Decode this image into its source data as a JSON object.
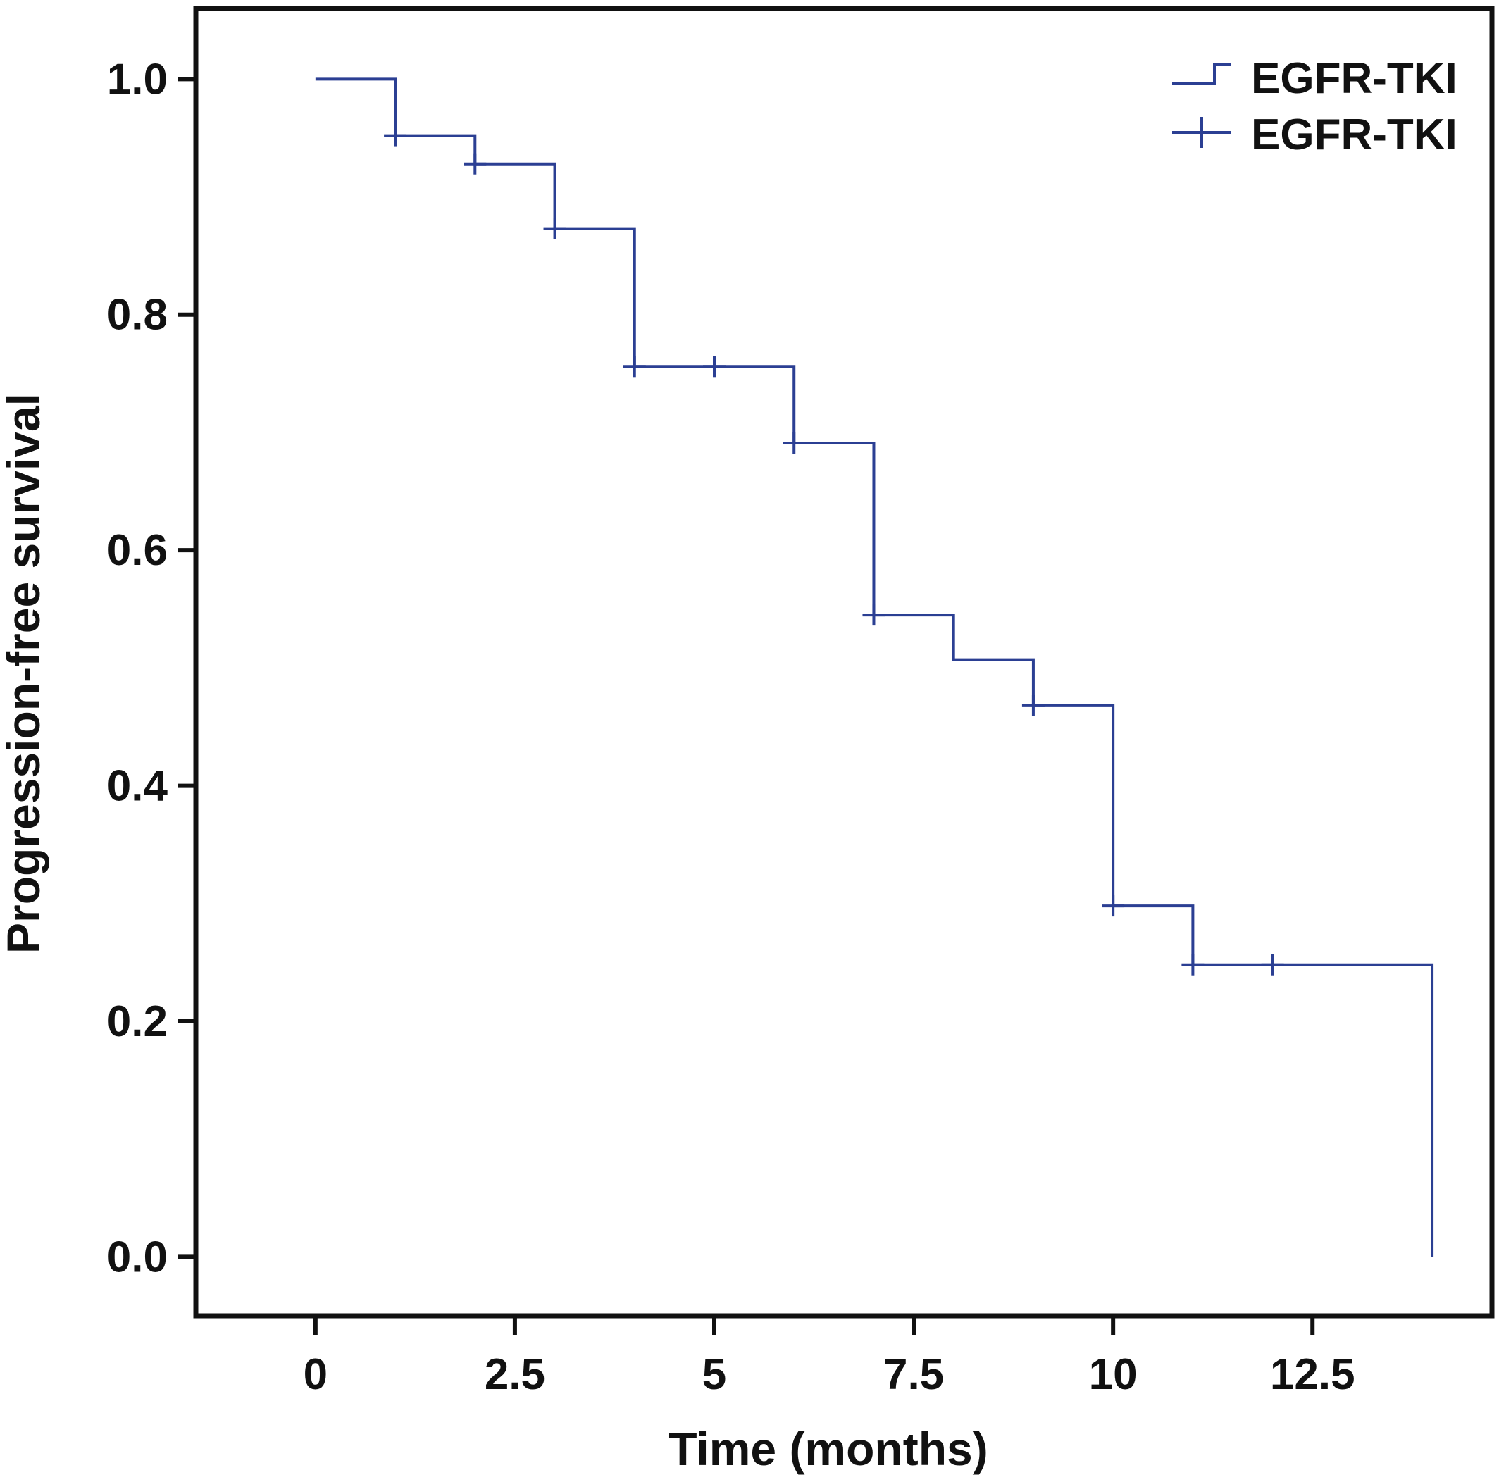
{
  "chart_data": {
    "type": "line",
    "xlabel": "Time (months)",
    "ylabel": "Progression-free survival",
    "xlim": [
      -1.5,
      14.75
    ],
    "ylim": [
      -0.05,
      1.06
    ],
    "x_ticks": [
      0,
      2.5,
      5,
      7.5,
      10,
      12.5
    ],
    "x_tick_labels": [
      "0",
      "2.5",
      "5",
      "7.5",
      "10",
      "12.5"
    ],
    "y_ticks": [
      0.0,
      0.2,
      0.4,
      0.6,
      0.8,
      1.0
    ],
    "y_tick_labels": [
      "0.0",
      "0.2",
      "0.4",
      "0.6",
      "0.8",
      "1.0"
    ],
    "grid": false,
    "legend_position": "top-right",
    "legend": [
      {
        "label": "EGFR-TKI",
        "symbol": "step-line"
      },
      {
        "label": "EGFR-TKI",
        "symbol": "censor-cross"
      }
    ],
    "series": [
      {
        "name": "EGFR-TKI",
        "color": "#2b3f93",
        "steps": [
          {
            "x": 0,
            "y": 1.0
          },
          {
            "x": 1,
            "y": 0.952
          },
          {
            "x": 2,
            "y": 0.928
          },
          {
            "x": 3,
            "y": 0.873
          },
          {
            "x": 4,
            "y": 0.756
          },
          {
            "x": 6,
            "y": 0.691
          },
          {
            "x": 7,
            "y": 0.545
          },
          {
            "x": 8,
            "y": 0.507
          },
          {
            "x": 9,
            "y": 0.468
          },
          {
            "x": 10,
            "y": 0.298
          },
          {
            "x": 11,
            "y": 0.248
          },
          {
            "x": 14,
            "y": 0.0
          }
        ],
        "censored": [
          {
            "x": 1,
            "y": 0.952
          },
          {
            "x": 2,
            "y": 0.928
          },
          {
            "x": 3,
            "y": 0.873
          },
          {
            "x": 4,
            "y": 0.756
          },
          {
            "x": 5,
            "y": 0.756
          },
          {
            "x": 6,
            "y": 0.691
          },
          {
            "x": 7,
            "y": 0.545
          },
          {
            "x": 9,
            "y": 0.468
          },
          {
            "x": 10,
            "y": 0.298
          },
          {
            "x": 11,
            "y": 0.248
          },
          {
            "x": 12,
            "y": 0.248
          }
        ]
      }
    ]
  }
}
